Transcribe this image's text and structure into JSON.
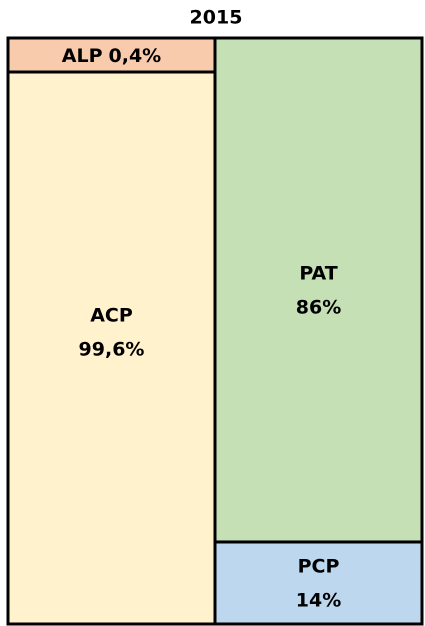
{
  "chart_data": {
    "type": "bar",
    "stacked": true,
    "title": "2015",
    "categories": [
      null,
      null
    ],
    "ylim": [
      0,
      100
    ],
    "series": [
      {
        "name": "ACP",
        "color": "#fff2cc",
        "values": [
          99.6,
          null
        ],
        "value_labels": [
          "99,6%",
          null
        ]
      },
      {
        "name": "ALP",
        "color": "#f8cbad",
        "values": [
          0.4,
          null
        ],
        "value_labels": [
          "0,4%",
          null
        ]
      },
      {
        "name": "PCP",
        "color": "#bdd7ee",
        "values": [
          null,
          14
        ],
        "value_labels": [
          null,
          "14%"
        ]
      },
      {
        "name": "PAT",
        "color": "#c5e0b4",
        "values": [
          null,
          86
        ],
        "value_labels": [
          null,
          "86%"
        ]
      }
    ]
  }
}
